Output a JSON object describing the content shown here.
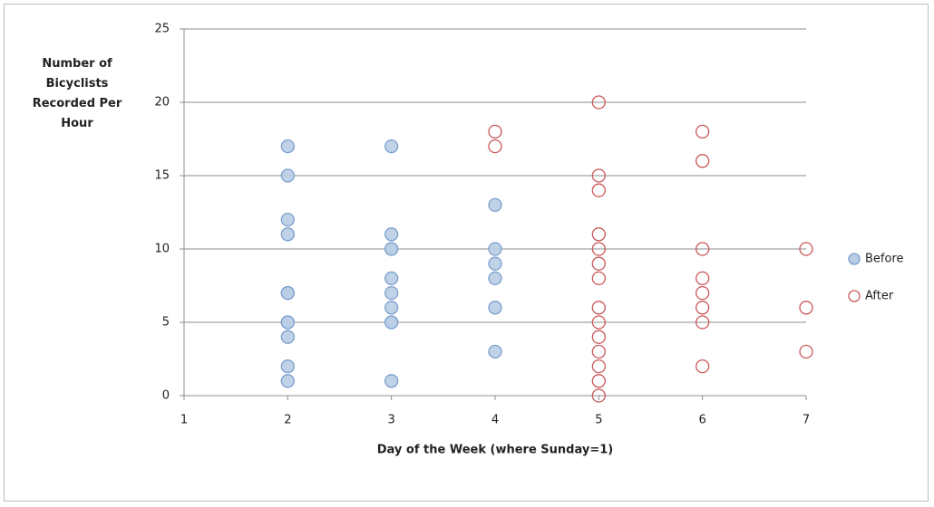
{
  "chart_data": {
    "type": "scatter",
    "x_label": "Day of the Week (where Sunday=1)",
    "y_label": "Number of Bicyclists Recorded Per Hour",
    "xlim": [
      1,
      7
    ],
    "xticks": [
      1,
      2,
      3,
      4,
      5,
      6,
      7
    ],
    "ylim": [
      0,
      25
    ],
    "yticks": [
      0,
      5,
      10,
      15,
      20,
      25
    ],
    "grid": true,
    "legend": "right",
    "series": [
      {
        "name": "Before",
        "color": "#7b9fcc",
        "fill": "#b9cde5",
        "x": [
          2,
          2,
          2,
          2,
          2,
          2,
          2,
          2,
          2,
          2,
          2,
          3,
          3,
          3,
          3,
          3,
          3,
          3,
          3,
          3,
          3,
          4,
          4,
          4,
          4,
          4,
          4
        ],
        "values": [
          17,
          15,
          12,
          11,
          7,
          7,
          5,
          5,
          4,
          2,
          1,
          17,
          11,
          10,
          10,
          8,
          7,
          6,
          5,
          5,
          1,
          13,
          10,
          9,
          8,
          6,
          3
        ]
      },
      {
        "name": "After",
        "color": "#c9575a",
        "fill": "none",
        "x": [
          4,
          4,
          5,
          5,
          5,
          5,
          5,
          5,
          5,
          5,
          5,
          5,
          5,
          5,
          5,
          5,
          6,
          6,
          6,
          6,
          6,
          6,
          6,
          6,
          7,
          7,
          7
        ],
        "values": [
          18,
          17,
          20,
          15,
          14,
          11,
          10,
          9,
          8,
          6,
          5,
          4,
          3,
          2,
          1,
          0,
          18,
          16,
          10,
          8,
          7,
          6,
          5,
          2,
          10,
          6,
          3
        ]
      }
    ]
  }
}
